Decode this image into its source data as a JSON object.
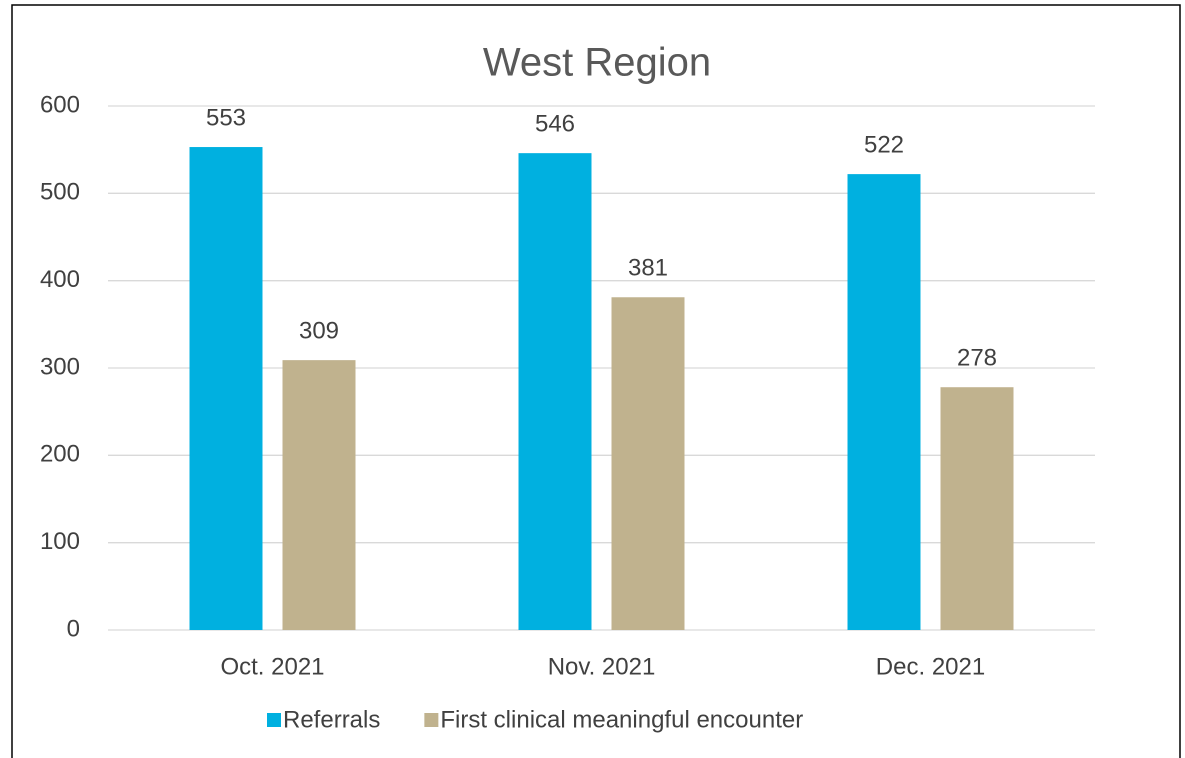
{
  "chart_data": {
    "type": "bar",
    "title": "West Region",
    "categories": [
      "Oct. 2021",
      "Nov. 2021",
      "Dec. 2021"
    ],
    "series": [
      {
        "name": "Referrals",
        "color": "#00b0e0",
        "values": [
          553,
          546,
          522
        ]
      },
      {
        "name": "First clinical meaningful encounter",
        "color": "#c0b28e",
        "values": [
          309,
          381,
          278
        ]
      }
    ],
    "ylim": [
      0,
      600
    ],
    "yticks": [
      0,
      100,
      200,
      300,
      400,
      500,
      600
    ],
    "grid": true,
    "legend": "bottom"
  }
}
